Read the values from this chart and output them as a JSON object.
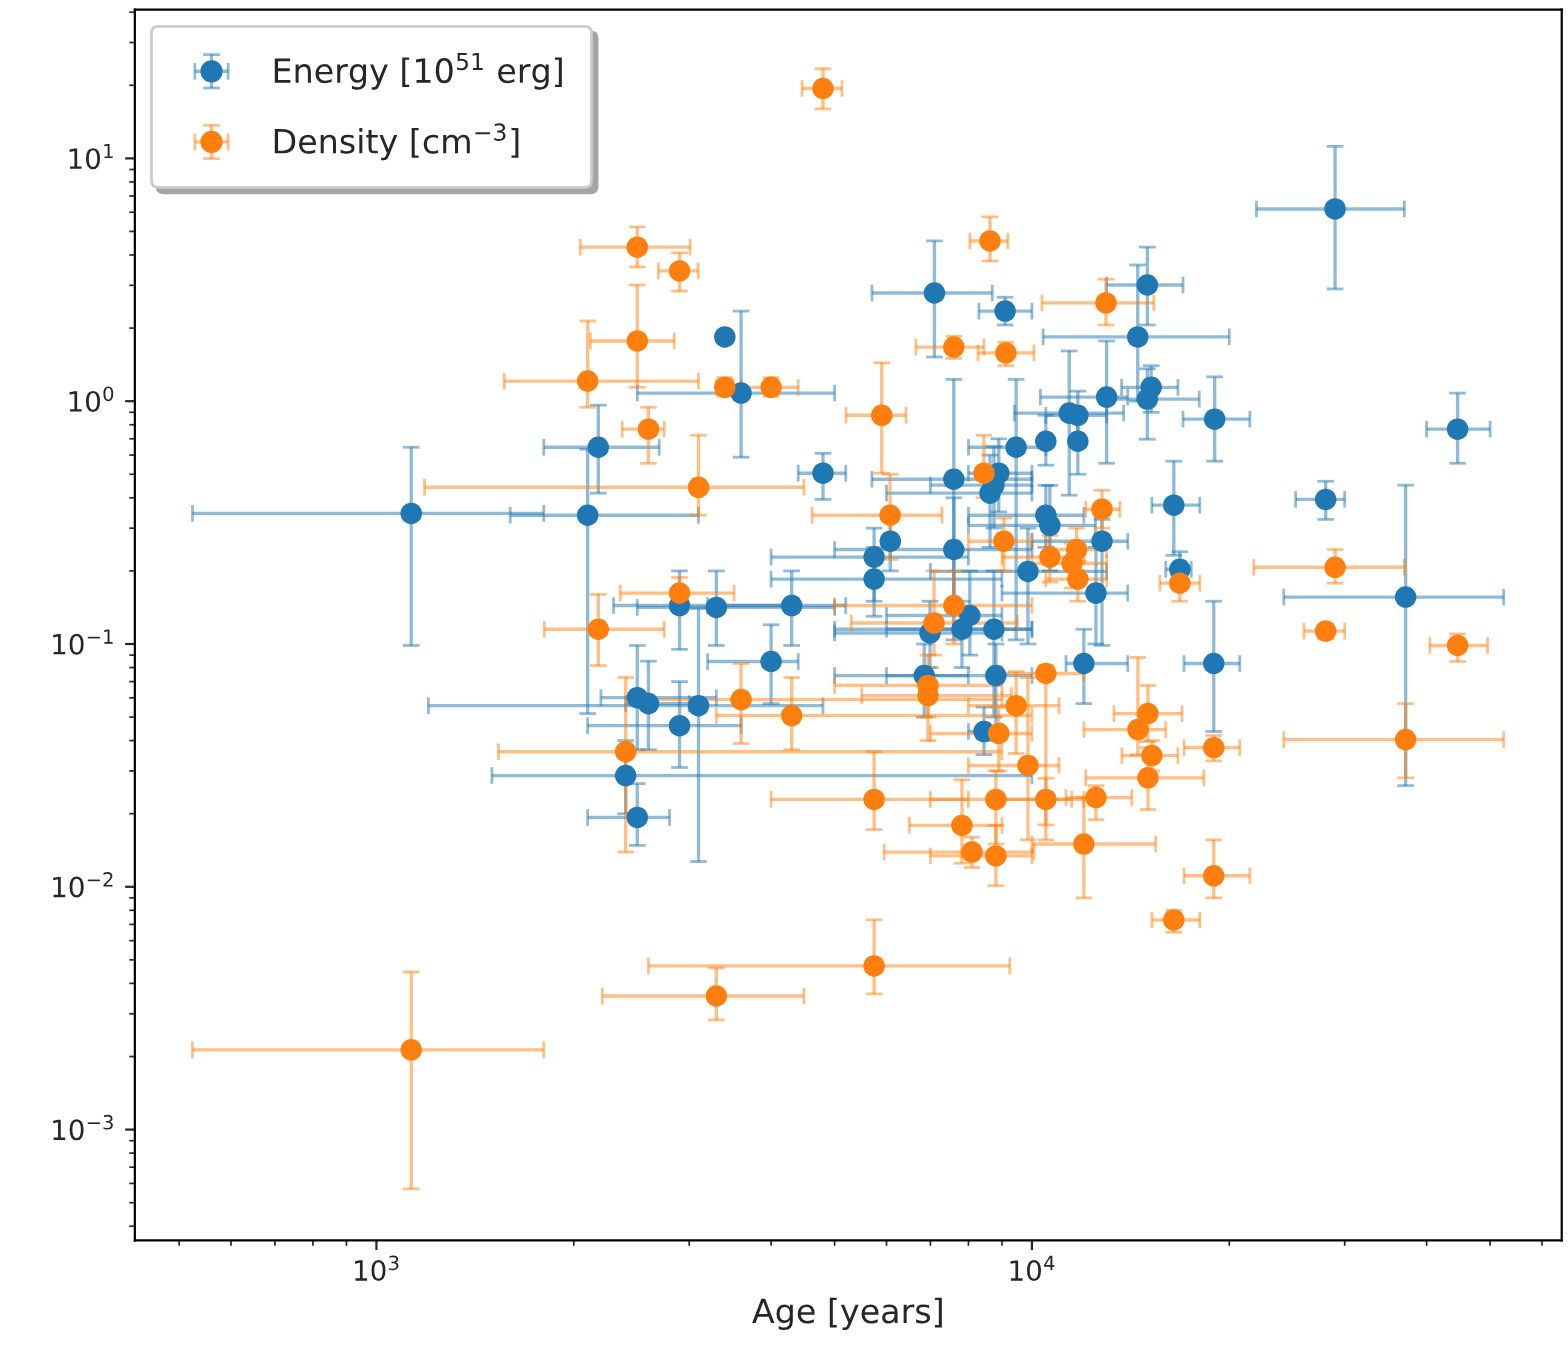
{
  "chart_data": {
    "type": "scatter",
    "xlabel": "Age [years]",
    "log": "xy",
    "grid": false,
    "legend": "top left",
    "marker": "circle",
    "xlim": [
      428,
      64300
    ],
    "ylim": [
      0.00035,
      41
    ],
    "xticks": [
      {
        "value": 1000,
        "label": "10$^{3}$"
      },
      {
        "value": 10000,
        "label": "10$^{4}$"
      }
    ],
    "yticks": [
      {
        "value": 0.001,
        "label": "10$^{−3}$"
      },
      {
        "value": 0.01,
        "label": "10$^{−2}$"
      },
      {
        "value": 0.1,
        "label": "10$^{−1}$"
      },
      {
        "value": 1,
        "label": "10$^{0}$"
      },
      {
        "value": 10,
        "label": "10$^{1}$"
      }
    ],
    "series": [
      {
        "name": "Energy [10$^{51}$ erg]",
        "color": "#1f77b4",
        "x": [
          1130,
          2180,
          2100,
          3400,
          3600,
          4800,
          2900,
          3300,
          4300,
          4000,
          2500,
          2600,
          3100,
          2900,
          2400,
          2500,
          29000,
          7100,
          9100,
          15000,
          14500,
          13000,
          15200,
          15000,
          19000,
          44600,
          11400,
          11750,
          11750,
          10500,
          9460,
          8900,
          8750,
          8630,
          7600,
          16460,
          28060,
          10500,
          10650,
          12790,
          6080,
          5744,
          5744,
          7600,
          9860,
          16810,
          37160,
          12520,
          8040,
          8750,
          6990,
          7820,
          6850,
          8810,
          12000,
          18940,
          8450
        ],
        "values": [
          0.345,
          0.646,
          0.339,
          1.84,
          1.08,
          0.505,
          0.144,
          0.1415,
          0.144,
          0.0847,
          0.0601,
          0.0568,
          0.0557,
          0.0461,
          0.0287,
          0.0193,
          6.19,
          2.79,
          2.35,
          3.01,
          1.84,
          1.04,
          1.14,
          1.02,
          0.843,
          0.767,
          0.893,
          0.875,
          0.684,
          0.684,
          0.646,
          0.505,
          0.451,
          0.418,
          0.477,
          0.373,
          0.394,
          0.339,
          0.308,
          0.265,
          0.265,
          0.228,
          0.185,
          0.245,
          0.199,
          0.203,
          0.156,
          0.162,
          0.131,
          0.115,
          0.111,
          0.115,
          0.0741,
          0.0741,
          0.0831,
          0.0831,
          0.0436
        ],
        "xerrors": [
          [
            524,
            1800
          ],
          [
            1800,
            2700
          ],
          [
            1600,
            3100
          ],
          null,
          [
            2500,
            5000
          ],
          [
            4400,
            5200
          ],
          [
            2300,
            4400
          ],
          [
            2500,
            5000
          ],
          [
            3200,
            5200
          ],
          [
            3200,
            4400
          ],
          [
            2200,
            3300
          ],
          [
            2400,
            3000
          ],
          [
            1200,
            4800
          ],
          [
            2100,
            3600
          ],
          [
            1500,
            10000
          ],
          [
            2100,
            2800
          ],
          [
            22000,
            37000
          ],
          [
            5700,
            8700
          ],
          [
            8300,
            10000
          ],
          [
            13000,
            17000
          ],
          [
            10400,
            20000
          ],
          [
            10300,
            14000
          ],
          [
            13700,
            16700
          ],
          [
            13150,
            18000
          ],
          [
            17000,
            21500
          ],
          [
            40000,
            50000
          ],
          [
            9400,
            13800
          ],
          [
            10500,
            13000
          ],
          null,
          null,
          [
            8000,
            10500
          ],
          [
            8000,
            10000
          ],
          [
            7000,
            10000
          ],
          [
            6000,
            10000
          ],
          [
            5700,
            10000
          ],
          [
            15240,
            18030
          ],
          [
            25250,
            30000
          ],
          [
            8000,
            12000
          ],
          [
            8000,
            12500
          ],
          [
            10000,
            14000
          ],
          null,
          [
            4000,
            8000
          ],
          [
            4000,
            9000
          ],
          [
            5000,
            10000
          ],
          [
            7000,
            13000
          ],
          [
            16000,
            17500
          ],
          [
            24220,
            52440
          ],
          [
            9000,
            14000
          ],
          [
            6000,
            9000
          ],
          [
            6000,
            10000
          ],
          [
            5000,
            9000
          ],
          [
            5000,
            10000
          ],
          [
            5000,
            8000
          ],
          [
            6000,
            10000
          ],
          [
            11270,
            14000
          ],
          [
            17060,
            20750
          ],
          [
            8000,
            9000
          ]
        ],
        "errors": [
          [
            0.0986,
            0.646
          ],
          [
            0.418,
            0.963
          ],
          [
            0.0517,
            0.634
          ],
          null,
          [
            0.588,
            2.35
          ],
          [
            0.394,
            0.61
          ],
          [
            0.095,
            0.2
          ],
          [
            0.0986,
            0.2
          ],
          [
            0.0986,
            0.2
          ],
          [
            0.0568,
            0.12
          ],
          [
            0.0367,
            0.0986
          ],
          [
            0.0367,
            0.085
          ],
          [
            0.0127,
            0.14
          ],
          [
            0.031,
            0.07
          ],
          [
            0.02,
            0.04
          ],
          [
            0.0148,
            0.0266
          ],
          [
            2.9,
            11.2
          ],
          [
            1.52,
            4.57
          ],
          [
            2.06,
            2.68
          ],
          [
            2.06,
            4.31
          ],
          [
            1.0,
            3.64
          ],
          [
            0.555,
            1.77
          ],
          [
            0.9,
            1.4
          ],
          [
            0.697,
            1.36
          ],
          [
            0.566,
            1.26
          ],
          [
            0.555,
            1.08
          ],
          [
            0.41,
            1.61
          ],
          [
            0.7,
            1.1
          ],
          [
            0.5,
            0.9
          ],
          [
            0.545,
            0.875
          ],
          [
            0.104,
            1.23
          ],
          [
            0.35,
            0.7
          ],
          [
            0.3,
            0.65
          ],
          [
            0.25,
            0.6
          ],
          [
            0.104,
            1.23
          ],
          [
            0.232,
            0.566
          ],
          [
            0.326,
            0.468
          ],
          [
            0.25,
            0.45
          ],
          [
            0.2,
            0.45
          ],
          [
            0.0986,
            0.326
          ],
          [
            0.2,
            0.35
          ],
          [
            0.15,
            0.3
          ],
          [
            0.13,
            0.25
          ],
          [
            0.15,
            0.4
          ],
          [
            0.1,
            0.3
          ],
          [
            0.17,
            0.24
          ],
          [
            0.0261,
            0.451
          ],
          [
            0.1,
            0.25
          ],
          [
            0.09,
            0.2
          ],
          [
            0.05,
            0.2
          ],
          [
            0.08,
            0.15
          ],
          [
            0.08,
            0.15
          ],
          [
            0.05,
            0.1
          ],
          [
            0.04,
            0.1
          ],
          [
            0.0568,
            0.115
          ],
          [
            0.0436,
            0.15
          ],
          [
            0.035,
            0.055
          ]
        ]
      },
      {
        "name": "Density [cm$^{−3}$]",
        "color": "#ff7f0e",
        "x": [
          4800,
          2500,
          2900,
          2500,
          2100,
          3400,
          4000,
          2600,
          3100,
          2900,
          2180,
          3600,
          4300,
          2400,
          3300,
          1130,
          5744,
          8630,
          12970,
          7600,
          9125,
          5900,
          8450,
          6076,
          12790,
          9060,
          10650,
          11700,
          11510,
          11750,
          16810,
          29000,
          7600,
          7090,
          28060,
          44600,
          6940,
          6940,
          10500,
          9460,
          8900,
          15030,
          14510,
          15240,
          15030,
          18940,
          37160,
          9860,
          5744,
          8810,
          10500,
          12520,
          7820,
          8100,
          8810,
          12000,
          18940,
          16460
        ],
        "values": [
          19.4,
          4.31,
          3.44,
          1.77,
          1.21,
          1.14,
          1.14,
          0.767,
          0.442,
          0.162,
          0.115,
          0.059,
          0.0507,
          0.036,
          0.00355,
          0.00213,
          0.00472,
          4.57,
          2.54,
          1.67,
          1.58,
          0.875,
          0.505,
          0.339,
          0.359,
          0.265,
          0.228,
          0.245,
          0.215,
          0.185,
          0.178,
          0.207,
          0.144,
          0.122,
          0.113,
          0.0986,
          0.0675,
          0.0613,
          0.0756,
          0.0557,
          0.0428,
          0.0517,
          0.0444,
          0.0347,
          0.0281,
          0.0374,
          0.0404,
          0.0316,
          0.0229,
          0.0229,
          0.0229,
          0.0233,
          0.0179,
          0.0139,
          0.0134,
          0.015,
          0.0111,
          0.0073
        ],
        "xerrors": [
          [
            4460,
            5130
          ],
          [
            2046,
            3010
          ],
          [
            2692,
            3096
          ],
          [
            2120,
            2846
          ],
          [
            1567,
            3100
          ],
          [
            3300,
            3600
          ],
          [
            3500,
            4400
          ],
          [
            2371,
            2748
          ],
          [
            1184,
            4490
          ],
          [
            2355,
            3513
          ],
          [
            1803,
            2748
          ],
          [
            2600,
            9000
          ],
          [
            3300,
            10000
          ],
          [
            1535,
            9000
          ],
          [
            2211,
            4490
          ],
          [
            524,
            1800
          ],
          [
            2600,
            9250
          ],
          [
            8040,
            9190
          ],
          [
            10360,
            15350
          ],
          [
            6650,
            8450
          ],
          [
            8276,
            10070
          ],
          [
            5204,
            6426
          ],
          null,
          [
            4620,
            7290
          ],
          [
            12080,
            13620
          ],
          [
            8000,
            10000
          ],
          [
            9000,
            12000
          ],
          [
            10500,
            13000
          ],
          [
            10000,
            13000
          ],
          [
            10500,
            13000
          ],
          [
            15670,
            18030
          ],
          [
            21790,
            37000
          ],
          [
            5000,
            10000
          ],
          [
            5300,
            9500
          ],
          [
            26000,
            30000
          ],
          [
            40450,
            49550
          ],
          [
            5000,
            9000
          ],
          [
            5500,
            9300
          ],
          [
            9000,
            12000
          ],
          [
            8000,
            11000
          ],
          [
            7000,
            10000
          ],
          [
            13340,
            16940
          ],
          [
            12000,
            16000
          ],
          [
            13720,
            16700
          ],
          [
            12080,
            18290
          ],
          [
            17060,
            20750
          ],
          [
            24220,
            52440
          ],
          [
            8000,
            11000
          ],
          [
            4000,
            8000
          ],
          [
            7000,
            11500
          ],
          [
            9000,
            12000
          ],
          [
            11270,
            14200
          ],
          [
            6500,
            9000
          ],
          [
            5950,
            10070
          ],
          [
            7000,
            10000
          ],
          [
            10000,
            15450
          ],
          [
            17060,
            21500
          ],
          [
            15240,
            18030
          ]
        ],
        "errors": [
          [
            16.0,
            23.4
          ],
          [
            3.57,
            5.22
          ],
          [
            2.84,
            4.08
          ],
          [
            1.14,
            3.01
          ],
          [
            0.944,
            2.14
          ],
          [
            1.05,
            1.25
          ],
          [
            1.05,
            1.25
          ],
          [
            0.555,
            0.944
          ],
          [
            0.339,
            0.724
          ],
          [
            0.139,
            0.188
          ],
          [
            0.0815,
            0.16
          ],
          [
            0.0389,
            0.0831
          ],
          [
            0.0367,
            0.0728
          ],
          [
            0.0139,
            0.0728
          ],
          [
            0.00283,
            0.00463
          ],
          [
            0.00057,
            0.00446
          ],
          [
            0.00362,
            0.00731
          ],
          [
            3.78,
            5.74
          ],
          [
            2.06,
            3.18
          ],
          [
            1.5,
            1.85
          ],
          [
            1.4,
            1.75
          ],
          [
            0.505,
            1.44
          ],
          [
            0.4,
            0.724
          ],
          [
            0.223,
            0.5
          ],
          [
            0.3,
            0.43
          ],
          [
            0.2,
            0.33
          ],
          [
            0.18,
            0.28
          ],
          [
            0.2,
            0.3
          ],
          [
            0.17,
            0.26
          ],
          [
            0.15,
            0.22
          ],
          [
            0.15,
            0.21
          ],
          [
            0.178,
            0.245
          ],
          [
            0.1,
            0.2
          ],
          [
            0.09,
            0.2
          ],
          [
            0.105,
            0.12
          ],
          [
            0.0847,
            0.11
          ],
          [
            0.05,
            0.09
          ],
          [
            0.04,
            0.08
          ],
          [
            0.0156,
            0.0815
          ],
          [
            0.0354,
            0.077
          ],
          [
            0.03,
            0.055
          ],
          [
            0.0396,
            0.0675
          ],
          [
            0.035,
            0.088
          ],
          [
            0.03,
            0.04
          ],
          [
            0.0208,
            0.0374
          ],
          [
            0.033,
            0.042
          ],
          [
            0.0281,
            0.0568
          ],
          [
            0.0156,
            0.0728
          ],
          [
            0.0172,
            0.036
          ],
          [
            0.015,
            0.03
          ],
          [
            0.018,
            0.028
          ],
          [
            0.0189,
            0.0261
          ],
          [
            0.0125,
            0.0276
          ],
          [
            0.012,
            0.016
          ],
          [
            0.0101,
            0.0179
          ],
          [
            0.009,
            0.0233
          ],
          [
            0.009,
            0.0156
          ],
          [
            0.0065,
            0.008
          ]
        ]
      }
    ]
  }
}
